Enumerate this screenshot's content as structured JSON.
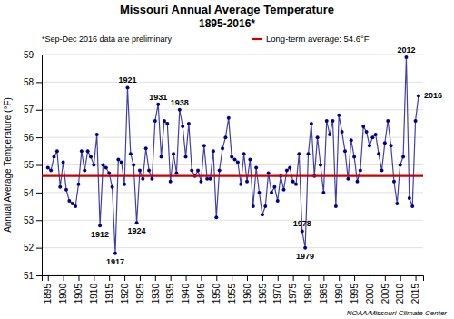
{
  "chart_data": {
    "type": "line",
    "title": "Missouri Annual Average Temperature",
    "subtitle": "1895-2016*",
    "y_label": "Annual Average Temperature (°F)",
    "note": "*Sep-Dec 2016 data are preliminary",
    "credit": "NOAA/Missouri Climate Center",
    "x": [
      1895,
      1896,
      1897,
      1898,
      1899,
      1900,
      1901,
      1902,
      1903,
      1904,
      1905,
      1906,
      1907,
      1908,
      1909,
      1910,
      1911,
      1912,
      1913,
      1914,
      1915,
      1916,
      1917,
      1918,
      1919,
      1920,
      1921,
      1922,
      1923,
      1924,
      1925,
      1926,
      1927,
      1928,
      1929,
      1930,
      1931,
      1932,
      1933,
      1934,
      1935,
      1936,
      1937,
      1938,
      1939,
      1940,
      1941,
      1942,
      1943,
      1944,
      1945,
      1946,
      1947,
      1948,
      1949,
      1950,
      1951,
      1952,
      1953,
      1954,
      1955,
      1956,
      1957,
      1958,
      1959,
      1960,
      1961,
      1962,
      1963,
      1964,
      1965,
      1966,
      1967,
      1968,
      1969,
      1970,
      1971,
      1972,
      1973,
      1974,
      1975,
      1976,
      1977,
      1978,
      1979,
      1980,
      1981,
      1982,
      1983,
      1984,
      1985,
      1986,
      1987,
      1988,
      1989,
      1990,
      1991,
      1992,
      1993,
      1994,
      1995,
      1996,
      1997,
      1998,
      1999,
      2000,
      2001,
      2002,
      2003,
      2004,
      2005,
      2006,
      2007,
      2008,
      2009,
      2010,
      2011,
      2012,
      2013,
      2014,
      2015,
      2016
    ],
    "series": [
      {
        "color": "#00008b",
        "marker": "circle",
        "line_style": "solid",
        "values": [
          54.9,
          54.8,
          55.3,
          55.5,
          54.2,
          55.1,
          54.1,
          53.7,
          53.6,
          53.5,
          54.3,
          55.5,
          54.8,
          55.5,
          55.3,
          55.0,
          56.1,
          52.8,
          55.0,
          54.9,
          54.7,
          54.2,
          51.8,
          55.2,
          55.1,
          54.3,
          57.8,
          55.4,
          55.0,
          52.9,
          54.8,
          54.5,
          55.6,
          54.8,
          54.5,
          56.6,
          57.2,
          55.3,
          56.6,
          56.5,
          54.4,
          55.4,
          54.7,
          57.0,
          56.4,
          55.3,
          56.5,
          54.8,
          54.6,
          54.8,
          54.4,
          55.7,
          54.5,
          54.5,
          55.5,
          53.1,
          54.8,
          55.6,
          56.0,
          56.7,
          55.3,
          55.2,
          55.1,
          54.3,
          55.4,
          54.4,
          55.2,
          53.5,
          54.9,
          54.0,
          53.2,
          53.5,
          54.7,
          54.0,
          54.2,
          53.7,
          54.6,
          54.1,
          54.8,
          54.9,
          54.4,
          54.3,
          55.4,
          52.6,
          52.0,
          55.4,
          56.5,
          54.6,
          56.0,
          55.0,
          54.0,
          56.6,
          56.1,
          56.6,
          53.5,
          56.8,
          56.2,
          55.5,
          54.5,
          55.9,
          55.3,
          54.4,
          54.8,
          56.4,
          56.2,
          55.7,
          56.0,
          56.1,
          55.4,
          54.8,
          55.8,
          56.6,
          55.7,
          54.4,
          53.6,
          55.0,
          55.3,
          58.9,
          53.8,
          53.5,
          56.6,
          57.5
        ]
      }
    ],
    "reference_line": {
      "value": 54.6,
      "label": "Long-term average: 54.6°F",
      "color": "#cc0000"
    },
    "annotations": [
      {
        "text": "1912",
        "x": 1912,
        "y": 52.8,
        "position": "below"
      },
      {
        "text": "1917",
        "x": 1917,
        "y": 51.8,
        "position": "below"
      },
      {
        "text": "1921",
        "x": 1921,
        "y": 57.8,
        "position": "above"
      },
      {
        "text": "1924",
        "x": 1924,
        "y": 52.9,
        "position": "below"
      },
      {
        "text": "1931",
        "x": 1931,
        "y": 57.2,
        "position": "above"
      },
      {
        "text": "1938",
        "x": 1938,
        "y": 57.0,
        "position": "above"
      },
      {
        "text": "1978",
        "x": 1978,
        "y": 52.6,
        "position": "above"
      },
      {
        "text": "1979",
        "x": 1979,
        "y": 52.0,
        "position": "below"
      },
      {
        "text": "2012",
        "x": 2012,
        "y": 58.9,
        "position": "above"
      },
      {
        "text": "2016",
        "x": 2016,
        "y": 57.5,
        "position": "right"
      }
    ],
    "xlim": [
      1893,
      2017.5
    ],
    "xticks": [
      1895,
      1900,
      1905,
      1910,
      1915,
      1920,
      1925,
      1930,
      1935,
      1940,
      1945,
      1950,
      1955,
      1960,
      1965,
      1970,
      1975,
      1980,
      1985,
      1990,
      1995,
      2000,
      2005,
      2010,
      2015
    ],
    "ylim": [
      51.0,
      59.0
    ],
    "yticks": [
      51.0,
      52.0,
      53.0,
      54.0,
      55.0,
      56.0,
      57.0,
      58.0,
      59.0
    ],
    "grid": true
  }
}
